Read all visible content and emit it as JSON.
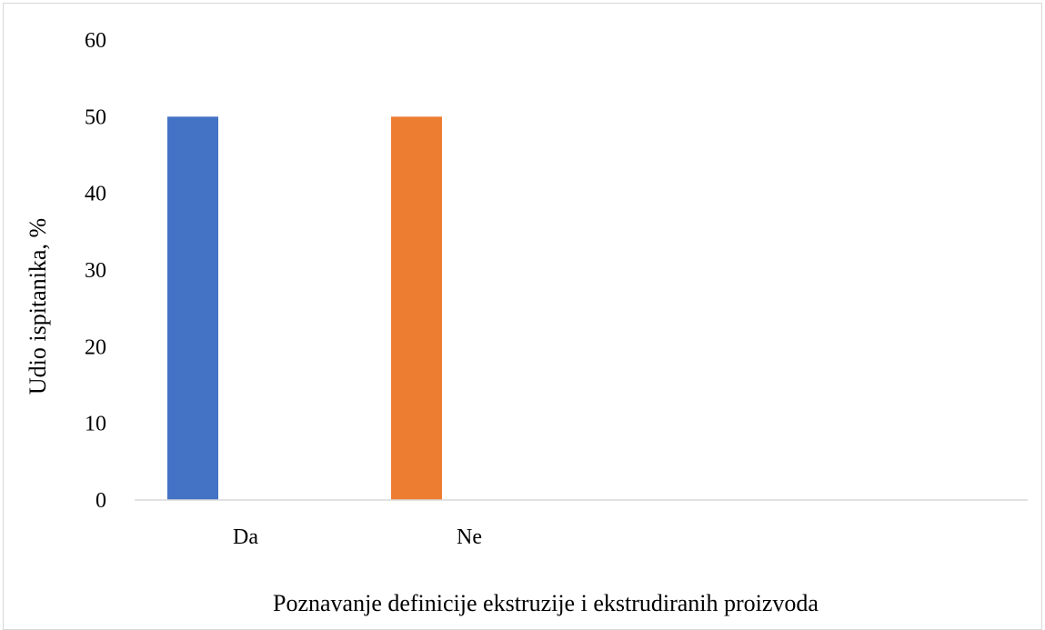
{
  "chart_data": {
    "type": "bar",
    "categories": [
      "Da",
      "Ne"
    ],
    "values": [
      50,
      50
    ],
    "colors": [
      "#4472C4",
      "#ED7D31"
    ],
    "xlabel": "Poznavanje definicije ekstruzije i ekstrudiranih proizvoda",
    "ylabel": "Udio ispitanika, %",
    "ylim": [
      0,
      60
    ],
    "yticks": [
      0,
      10,
      20,
      30,
      40,
      50,
      60
    ],
    "grid": false,
    "legend": "none"
  }
}
